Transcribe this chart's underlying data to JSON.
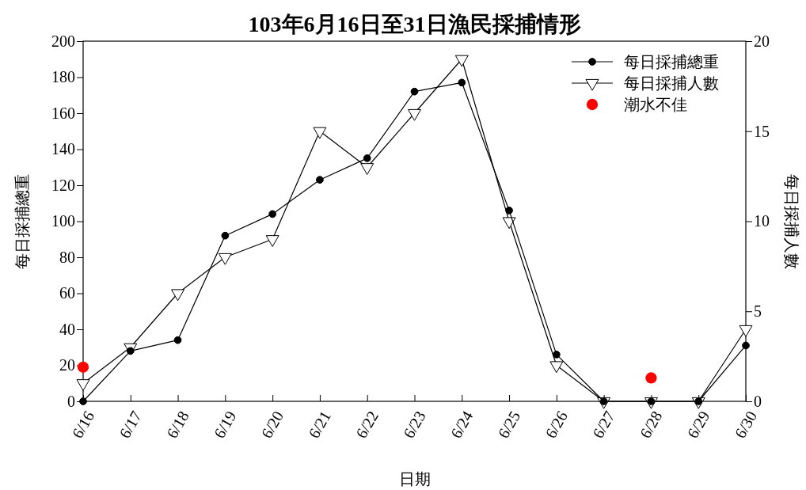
{
  "chart_data": {
    "type": "line",
    "title": "103年6月16日至31日漁民採捕情形",
    "xlabel": "日期",
    "ylabel": "每日採捕總重",
    "y2label": "每日採捕人數",
    "categories": [
      "6/16",
      "6/17",
      "6/18",
      "6/19",
      "6/20",
      "6/21",
      "6/22",
      "6/23",
      "6/24",
      "6/25",
      "6/26",
      "6/27",
      "6/28",
      "6/29",
      "6/30"
    ],
    "series": [
      {
        "name": "每日採捕總重",
        "color": "#000000",
        "marker": "circle",
        "values": [
          0,
          28,
          34,
          92,
          104,
          123,
          135,
          172,
          177,
          106,
          26,
          0,
          0,
          0,
          31
        ]
      },
      {
        "name": "每日採捕人數",
        "color": "#000000",
        "marker": "triangle",
        "axis": "y2",
        "values": [
          1,
          3,
          6,
          8,
          9,
          15,
          13,
          16,
          19,
          10,
          2,
          0,
          0,
          0,
          4
        ]
      },
      {
        "name": "潮水不佳",
        "type": "scatter",
        "color": "#ff0000",
        "marker": "circle",
        "x": [
          "6/16",
          "6/28"
        ],
        "values": [
          19,
          13
        ]
      }
    ],
    "ylim": [
      0,
      200
    ],
    "yticks": [
      0,
      20,
      40,
      60,
      80,
      100,
      120,
      140,
      160,
      180,
      200
    ],
    "y2lim": [
      0,
      20
    ],
    "y2ticks": [
      0,
      5,
      10,
      15,
      20
    ],
    "legend": "top right",
    "grid": false
  }
}
